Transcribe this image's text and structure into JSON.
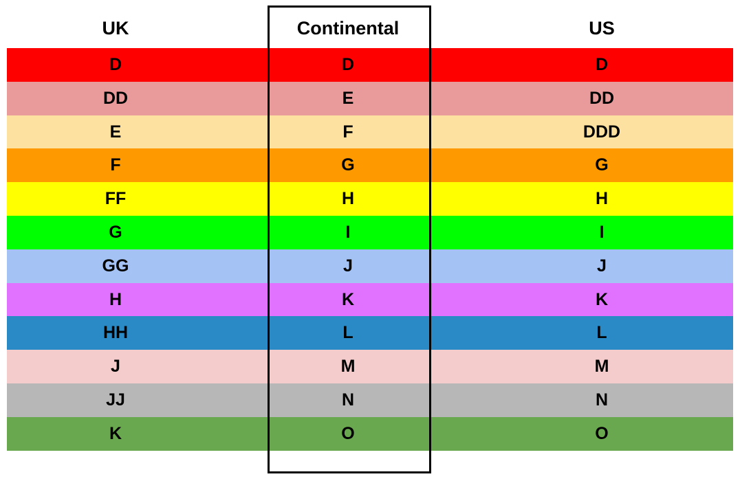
{
  "headers": [
    "UK",
    "Continental",
    "US"
  ],
  "rows": [
    {
      "color": "#ff0000",
      "uk": "D",
      "continental": "D",
      "us": "D"
    },
    {
      "color": "#e99a9a",
      "uk": "DD",
      "continental": "E",
      "us": "DD"
    },
    {
      "color": "#fde1a0",
      "uk": "E",
      "continental": "F",
      "us": "DDD"
    },
    {
      "color": "#ff9900",
      "uk": "F",
      "continental": "G",
      "us": "G"
    },
    {
      "color": "#ffff00",
      "uk": "FF",
      "continental": "H",
      "us": "H"
    },
    {
      "color": "#00ff00",
      "uk": "G",
      "continental": "I",
      "us": "I"
    },
    {
      "color": "#a4c2f4",
      "uk": "GG",
      "continental": "J",
      "us": "J"
    },
    {
      "color": "#e072ff",
      "uk": "H",
      "continental": "K",
      "us": "K"
    },
    {
      "color": "#2a8ac6",
      "uk": "HH",
      "continental": "L",
      "us": "L"
    },
    {
      "color": "#f4cccc",
      "uk": "J",
      "continental": "M",
      "us": "M"
    },
    {
      "color": "#b7b7b7",
      "uk": "JJ",
      "continental": "N",
      "us": "N"
    },
    {
      "color": "#6aa84f",
      "uk": "K",
      "continental": "O",
      "us": "O"
    }
  ]
}
